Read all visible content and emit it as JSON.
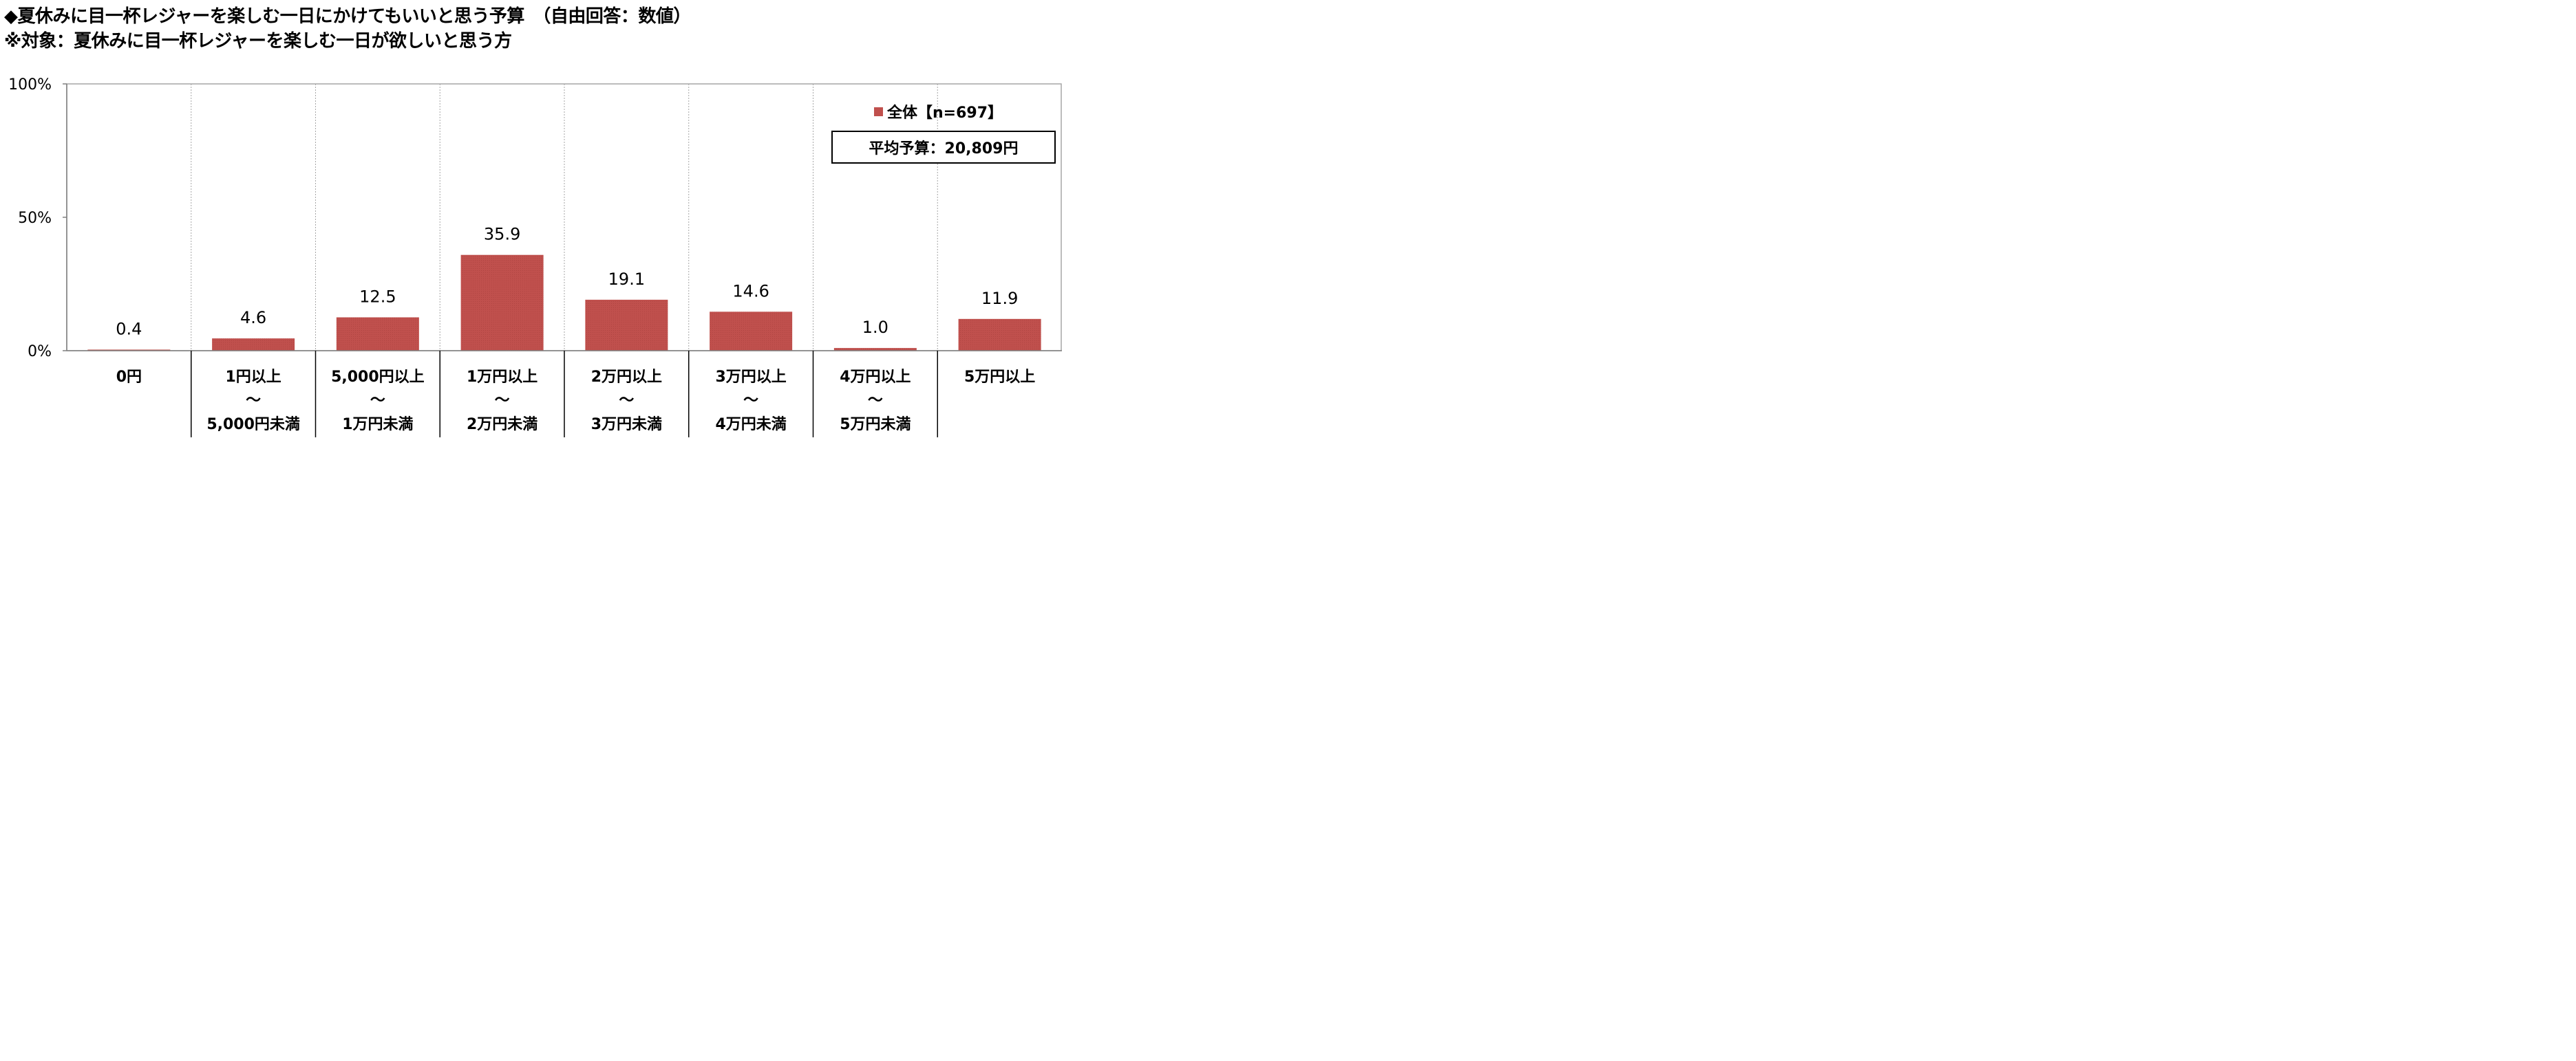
{
  "header": {
    "title": "◆夏休みに目一杯レジャーを楽しむ一日にかけてもいいと思う予算　（自由回答：数値）",
    "subtitle": "※対象：夏休みに目一杯レジャーを楽しむ一日が欲しいと思う方"
  },
  "legend": {
    "label": "全体【n=697】",
    "color": "#C0504D"
  },
  "average": {
    "label": "平均予算：20,809円"
  },
  "chart_data": {
    "type": "bar",
    "categories": [
      [
        "0円"
      ],
      [
        "1円以上",
        "～",
        "5,000円未満"
      ],
      [
        "5,000円以上",
        "～",
        "1万円未満"
      ],
      [
        "1万円以上",
        "～",
        "2万円未満"
      ],
      [
        "2万円以上",
        "～",
        "3万円未満"
      ],
      [
        "3万円以上",
        "～",
        "4万円未満"
      ],
      [
        "4万円以上",
        "～",
        "5万円未満"
      ],
      [
        "5万円以上"
      ]
    ],
    "series": [
      {
        "name": "全体【n=697】",
        "values": [
          0.4,
          4.6,
          12.5,
          35.9,
          19.1,
          14.6,
          1.0,
          11.9
        ],
        "labels": [
          "0.4",
          "4.6",
          "12.5",
          "35.9",
          "19.1",
          "14.6",
          "1.0",
          "11.9"
        ],
        "color": "#C0504D"
      }
    ],
    "ylim": [
      0,
      100
    ],
    "yticks": [
      0,
      50,
      100
    ],
    "ytick_labels": [
      "0%",
      "50%",
      "100%"
    ],
    "grid": "vertical dotted category separators",
    "legend_position": "top-right"
  }
}
